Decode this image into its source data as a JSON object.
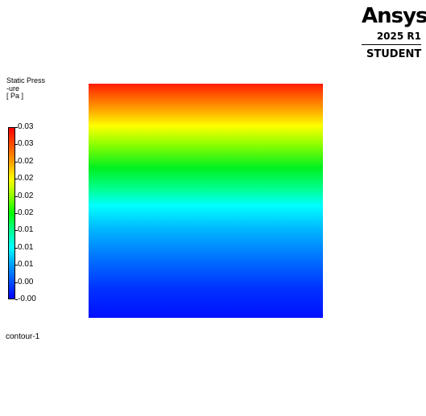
{
  "brand": {
    "name": "Ansys",
    "version": "2025 R1",
    "edition": "STUDENT"
  },
  "legend": {
    "title": "Static Press\n-ure\n[ Pa ]",
    "ticks": [
      "0.03",
      "0.03",
      "0.02",
      "0.02",
      "0.02",
      "0.02",
      "0.01",
      "0.01",
      "0.01",
      "0.00",
      "-0.00"
    ],
    "colormap": [
      "#0000ff",
      "#0050ff",
      "#00a0ff",
      "#00ffff",
      "#00ff90",
      "#00ff00",
      "#90ff00",
      "#ffff00",
      "#ffa000",
      "#ff5000",
      "#ff0000"
    ]
  },
  "viewport": {
    "contour_name": "contour-1",
    "gradient": [
      {
        "stop": 0.0,
        "color": "#ff1a00"
      },
      {
        "stop": 0.05,
        "color": "#ff5a00"
      },
      {
        "stop": 0.12,
        "color": "#ffb000"
      },
      {
        "stop": 0.18,
        "color": "#ffff00"
      },
      {
        "stop": 0.26,
        "color": "#8cff00"
      },
      {
        "stop": 0.36,
        "color": "#00f020"
      },
      {
        "stop": 0.45,
        "color": "#00ff90"
      },
      {
        "stop": 0.52,
        "color": "#00ffff"
      },
      {
        "stop": 0.62,
        "color": "#00b8ff"
      },
      {
        "stop": 0.75,
        "color": "#0070ff"
      },
      {
        "stop": 0.88,
        "color": "#0030ff"
      },
      {
        "stop": 1.0,
        "color": "#0010ff"
      }
    ]
  }
}
